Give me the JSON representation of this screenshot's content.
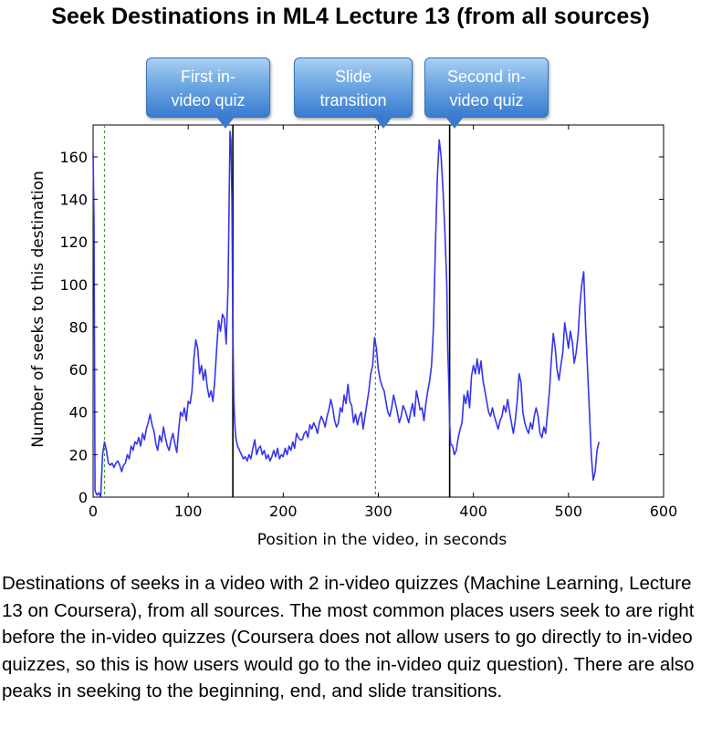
{
  "title": "Seek Destinations in ML4 Lecture 13 (from all sources)",
  "callouts": [
    {
      "line1": "First in-",
      "line2": "video quiz"
    },
    {
      "line1": "Slide",
      "line2": "transition"
    },
    {
      "line1": "Second in-",
      "line2": "video quiz"
    }
  ],
  "caption": "Destinations of seeks in a video with 2 in-video quizzes (Machine Learning, Lecture 13 on Coursera), from all sources. The most common places users seek to are right before the in-video quizzes (Coursera does not allow users to go directly to in-video quizzes, so this is how users would go to the in-video quiz question). There are also peaks in seeking to the beginning, end, and slide transitions.",
  "colors": {
    "series": "#3535ee",
    "quiz_line": "#000000",
    "slide_line": "#2ca02c",
    "callout": "#4a8ad8"
  },
  "chart_data": {
    "type": "line",
    "title": "",
    "xlabel": "Position in the video, in seconds",
    "ylabel": "Number of seeks to this destination",
    "xlim": [
      0,
      600
    ],
    "ylim": [
      0,
      175
    ],
    "xticks": [
      0,
      100,
      200,
      300,
      400,
      500,
      600
    ],
    "yticks": [
      0,
      20,
      40,
      60,
      80,
      100,
      120,
      140,
      160
    ],
    "grid": false,
    "vlines": [
      {
        "x": 12,
        "style": "dotted",
        "kind": "slide"
      },
      {
        "x": 147,
        "style": "solid",
        "kind": "quiz"
      },
      {
        "x": 297,
        "style": "dotted",
        "kind": "slide"
      },
      {
        "x": 375,
        "style": "solid",
        "kind": "quiz"
      }
    ],
    "series": [
      {
        "values": [
          [
            0,
            162
          ],
          [
            1,
            130
          ],
          [
            2,
            3
          ],
          [
            4,
            1
          ],
          [
            6,
            2
          ],
          [
            8,
            0
          ],
          [
            10,
            20
          ],
          [
            12,
            26
          ],
          [
            14,
            22
          ],
          [
            16,
            16
          ],
          [
            18,
            15
          ],
          [
            20,
            16
          ],
          [
            22,
            14
          ],
          [
            24,
            16
          ],
          [
            26,
            17
          ],
          [
            28,
            15
          ],
          [
            30,
            12
          ],
          [
            32,
            15
          ],
          [
            34,
            16
          ],
          [
            36,
            20
          ],
          [
            38,
            18
          ],
          [
            40,
            24
          ],
          [
            42,
            22
          ],
          [
            44,
            26
          ],
          [
            46,
            25
          ],
          [
            48,
            28
          ],
          [
            50,
            24
          ],
          [
            52,
            30
          ],
          [
            54,
            27
          ],
          [
            56,
            32
          ],
          [
            58,
            35
          ],
          [
            60,
            39
          ],
          [
            62,
            34
          ],
          [
            64,
            31
          ],
          [
            66,
            25
          ],
          [
            68,
            22
          ],
          [
            70,
            29
          ],
          [
            72,
            26
          ],
          [
            74,
            33
          ],
          [
            76,
            28
          ],
          [
            78,
            24
          ],
          [
            80,
            22
          ],
          [
            82,
            27
          ],
          [
            84,
            30
          ],
          [
            86,
            25
          ],
          [
            88,
            21
          ],
          [
            90,
            32
          ],
          [
            92,
            40
          ],
          [
            94,
            38
          ],
          [
            96,
            42
          ],
          [
            98,
            36
          ],
          [
            100,
            45
          ],
          [
            102,
            44
          ],
          [
            104,
            50
          ],
          [
            106,
            65
          ],
          [
            108,
            74
          ],
          [
            110,
            70
          ],
          [
            112,
            58
          ],
          [
            114,
            62
          ],
          [
            116,
            55
          ],
          [
            118,
            60
          ],
          [
            120,
            52
          ],
          [
            122,
            47
          ],
          [
            124,
            50
          ],
          [
            126,
            45
          ],
          [
            128,
            55
          ],
          [
            130,
            70
          ],
          [
            132,
            83
          ],
          [
            134,
            78
          ],
          [
            136,
            86
          ],
          [
            138,
            84
          ],
          [
            140,
            72
          ],
          [
            142,
            100
          ],
          [
            144,
            172
          ],
          [
            145,
            168
          ],
          [
            146,
            140
          ],
          [
            147,
            80
          ],
          [
            148,
            45
          ],
          [
            149,
            35
          ],
          [
            150,
            28
          ],
          [
            152,
            24
          ],
          [
            154,
            22
          ],
          [
            156,
            20
          ],
          [
            158,
            18
          ],
          [
            160,
            19
          ],
          [
            162,
            17
          ],
          [
            164,
            20
          ],
          [
            166,
            18
          ],
          [
            168,
            23
          ],
          [
            170,
            27
          ],
          [
            172,
            20
          ],
          [
            174,
            23
          ],
          [
            176,
            24
          ],
          [
            178,
            20
          ],
          [
            180,
            22
          ],
          [
            182,
            18
          ],
          [
            184,
            20
          ],
          [
            186,
            17
          ],
          [
            188,
            19
          ],
          [
            190,
            22
          ],
          [
            192,
            19
          ],
          [
            194,
            23
          ],
          [
            196,
            18
          ],
          [
            198,
            20
          ],
          [
            200,
            19
          ],
          [
            202,
            23
          ],
          [
            204,
            20
          ],
          [
            206,
            24
          ],
          [
            208,
            22
          ],
          [
            210,
            26
          ],
          [
            212,
            23
          ],
          [
            214,
            30
          ],
          [
            216,
            28
          ],
          [
            218,
            27
          ],
          [
            220,
            27
          ],
          [
            222,
            30
          ],
          [
            224,
            31
          ],
          [
            226,
            28
          ],
          [
            228,
            34
          ],
          [
            230,
            32
          ],
          [
            232,
            35
          ],
          [
            234,
            33
          ],
          [
            236,
            30
          ],
          [
            238,
            35
          ],
          [
            240,
            38
          ],
          [
            242,
            36
          ],
          [
            244,
            33
          ],
          [
            246,
            38
          ],
          [
            248,
            41
          ],
          [
            250,
            46
          ],
          [
            252,
            42
          ],
          [
            254,
            36
          ],
          [
            256,
            33
          ],
          [
            258,
            35
          ],
          [
            260,
            42
          ],
          [
            262,
            40
          ],
          [
            264,
            48
          ],
          [
            266,
            44
          ],
          [
            268,
            53
          ],
          [
            270,
            45
          ],
          [
            272,
            43
          ],
          [
            274,
            35
          ],
          [
            276,
            39
          ],
          [
            278,
            34
          ],
          [
            280,
            38
          ],
          [
            282,
            40
          ],
          [
            284,
            32
          ],
          [
            286,
            38
          ],
          [
            288,
            44
          ],
          [
            290,
            50
          ],
          [
            292,
            58
          ],
          [
            294,
            62
          ],
          [
            296,
            75
          ],
          [
            298,
            70
          ],
          [
            300,
            60
          ],
          [
            302,
            55
          ],
          [
            304,
            52
          ],
          [
            306,
            50
          ],
          [
            308,
            45
          ],
          [
            310,
            40
          ],
          [
            312,
            38
          ],
          [
            314,
            42
          ],
          [
            316,
            48
          ],
          [
            318,
            44
          ],
          [
            320,
            40
          ],
          [
            322,
            35
          ],
          [
            324,
            38
          ],
          [
            326,
            43
          ],
          [
            328,
            41
          ],
          [
            330,
            38
          ],
          [
            332,
            35
          ],
          [
            334,
            40
          ],
          [
            336,
            44
          ],
          [
            338,
            38
          ],
          [
            340,
            50
          ],
          [
            342,
            46
          ],
          [
            344,
            41
          ],
          [
            346,
            42
          ],
          [
            348,
            36
          ],
          [
            350,
            44
          ],
          [
            352,
            50
          ],
          [
            354,
            55
          ],
          [
            356,
            62
          ],
          [
            358,
            80
          ],
          [
            360,
            118
          ],
          [
            362,
            150
          ],
          [
            364,
            168
          ],
          [
            366,
            160
          ],
          [
            368,
            145
          ],
          [
            370,
            125
          ],
          [
            372,
            100
          ],
          [
            373,
            70
          ],
          [
            374,
            55
          ],
          [
            375,
            35
          ],
          [
            376,
            25
          ],
          [
            378,
            24
          ],
          [
            380,
            20
          ],
          [
            382,
            22
          ],
          [
            384,
            28
          ],
          [
            386,
            32
          ],
          [
            388,
            35
          ],
          [
            390,
            48
          ],
          [
            392,
            44
          ],
          [
            394,
            50
          ],
          [
            396,
            42
          ],
          [
            398,
            57
          ],
          [
            400,
            62
          ],
          [
            402,
            58
          ],
          [
            404,
            65
          ],
          [
            406,
            58
          ],
          [
            408,
            64
          ],
          [
            410,
            55
          ],
          [
            412,
            50
          ],
          [
            414,
            45
          ],
          [
            416,
            40
          ],
          [
            418,
            38
          ],
          [
            420,
            42
          ],
          [
            422,
            38
          ],
          [
            424,
            35
          ],
          [
            426,
            32
          ],
          [
            428,
            36
          ],
          [
            430,
            38
          ],
          [
            432,
            43
          ],
          [
            434,
            40
          ],
          [
            436,
            46
          ],
          [
            438,
            40
          ],
          [
            440,
            35
          ],
          [
            442,
            30
          ],
          [
            444,
            36
          ],
          [
            446,
            45
          ],
          [
            448,
            58
          ],
          [
            450,
            54
          ],
          [
            452,
            40
          ],
          [
            454,
            35
          ],
          [
            456,
            32
          ],
          [
            458,
            30
          ],
          [
            460,
            35
          ],
          [
            462,
            32
          ],
          [
            464,
            38
          ],
          [
            466,
            42
          ],
          [
            468,
            38
          ],
          [
            470,
            30
          ],
          [
            472,
            28
          ],
          [
            474,
            33
          ],
          [
            476,
            30
          ],
          [
            478,
            40
          ],
          [
            480,
            50
          ],
          [
            482,
            65
          ],
          [
            484,
            77
          ],
          [
            486,
            70
          ],
          [
            488,
            60
          ],
          [
            490,
            55
          ],
          [
            492,
            62
          ],
          [
            494,
            68
          ],
          [
            496,
            82
          ],
          [
            498,
            76
          ],
          [
            500,
            70
          ],
          [
            502,
            78
          ],
          [
            504,
            73
          ],
          [
            506,
            63
          ],
          [
            508,
            68
          ],
          [
            510,
            76
          ],
          [
            512,
            90
          ],
          [
            514,
            100
          ],
          [
            516,
            106
          ],
          [
            518,
            80
          ],
          [
            520,
            60
          ],
          [
            522,
            40
          ],
          [
            524,
            20
          ],
          [
            526,
            8
          ],
          [
            528,
            12
          ],
          [
            530,
            22
          ],
          [
            532,
            26
          ]
        ]
      }
    ]
  }
}
